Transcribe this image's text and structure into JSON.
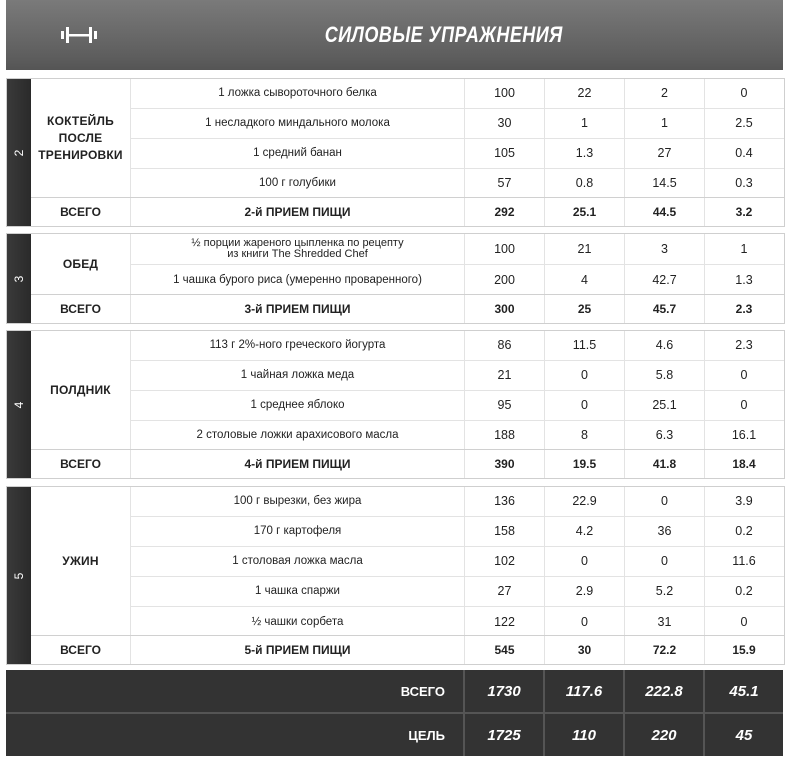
{
  "header": {
    "title": "СИЛОВЫЕ УПРАЖНЕНИЯ",
    "icon": "dumbbell-icon"
  },
  "meals": [
    {
      "number": "2",
      "name": "КОКТЕЙЛЬ ПОСЛЕ ТРЕНИРОВКИ",
      "items": [
        {
          "food": "1 ложка сывороточного белка",
          "v1": "100",
          "v2": "22",
          "v3": "2",
          "v4": "0"
        },
        {
          "food": "1 несладкого миндального молока",
          "v1": "30",
          "v2": "1",
          "v3": "1",
          "v4": "2.5"
        },
        {
          "food": "1 средний банан",
          "v1": "105",
          "v2": "1.3",
          "v3": "27",
          "v4": "0.4"
        },
        {
          "food": "100 г голубики",
          "v1": "57",
          "v2": "0.8",
          "v3": "14.5",
          "v4": "0.3"
        }
      ],
      "total": {
        "label": "ВСЕГО",
        "meal": "2-й ПРИЕМ ПИЩИ",
        "v1": "292",
        "v2": "25.1",
        "v3": "44.5",
        "v4": "3.2"
      }
    },
    {
      "number": "3",
      "name": "ОБЕД",
      "items": [
        {
          "food": "½ порции жареного цыпленка по рецепту из книги The Shredded Chef",
          "v1": "100",
          "v2": "21",
          "v3": "3",
          "v4": "1"
        },
        {
          "food": "1 чашка бурого риса (умеренно проваренного)",
          "v1": "200",
          "v2": "4",
          "v3": "42.7",
          "v4": "1.3"
        }
      ],
      "total": {
        "label": "ВСЕГО",
        "meal": "3-й ПРИЕМ ПИЩИ",
        "v1": "300",
        "v2": "25",
        "v3": "45.7",
        "v4": "2.3"
      }
    },
    {
      "number": "4",
      "name": "ПОЛДНИК",
      "items": [
        {
          "food": "113 г 2%-ного греческого йогурта",
          "v1": "86",
          "v2": "11.5",
          "v3": "4.6",
          "v4": "2.3"
        },
        {
          "food": "1 чайная ложка меда",
          "v1": "21",
          "v2": "0",
          "v3": "5.8",
          "v4": "0"
        },
        {
          "food": "1 среднее яблоко",
          "v1": "95",
          "v2": "0",
          "v3": "25.1",
          "v4": "0"
        },
        {
          "food": "2 столовые ложки арахисового масла",
          "v1": "188",
          "v2": "8",
          "v3": "6.3",
          "v4": "16.1"
        }
      ],
      "total": {
        "label": "ВСЕГО",
        "meal": "4-й ПРИЕМ ПИЩИ",
        "v1": "390",
        "v2": "19.5",
        "v3": "41.8",
        "v4": "18.4"
      }
    },
    {
      "number": "5",
      "name": "УЖИН",
      "items": [
        {
          "food": "100 г вырезки, без жира",
          "v1": "136",
          "v2": "22.9",
          "v3": "0",
          "v4": "3.9"
        },
        {
          "food": "170 г картофеля",
          "v1": "158",
          "v2": "4.2",
          "v3": "36",
          "v4": "0.2"
        },
        {
          "food": "1 столовая ложка масла",
          "v1": "102",
          "v2": "0",
          "v3": "0",
          "v4": "11.6"
        },
        {
          "food": "1 чашка спаржи",
          "v1": "27",
          "v2": "2.9",
          "v3": "5.2",
          "v4": "0.2"
        },
        {
          "food": "½ чашки сорбета",
          "v1": "122",
          "v2": "0",
          "v3": "31",
          "v4": "0"
        }
      ],
      "total": {
        "label": "ВСЕГО",
        "meal": "5-й ПРИЕМ ПИЩИ",
        "v1": "545",
        "v2": "30",
        "v3": "72.2",
        "v4": "15.9"
      }
    }
  ],
  "summary": {
    "total": {
      "label": "ВСЕГО",
      "v1": "1730",
      "v2": "117.6",
      "v3": "222.8",
      "v4": "45.1"
    },
    "goal": {
      "label": "ЦЕЛЬ",
      "v1": "1725",
      "v2": "110",
      "v3": "220",
      "v4": "45"
    }
  }
}
